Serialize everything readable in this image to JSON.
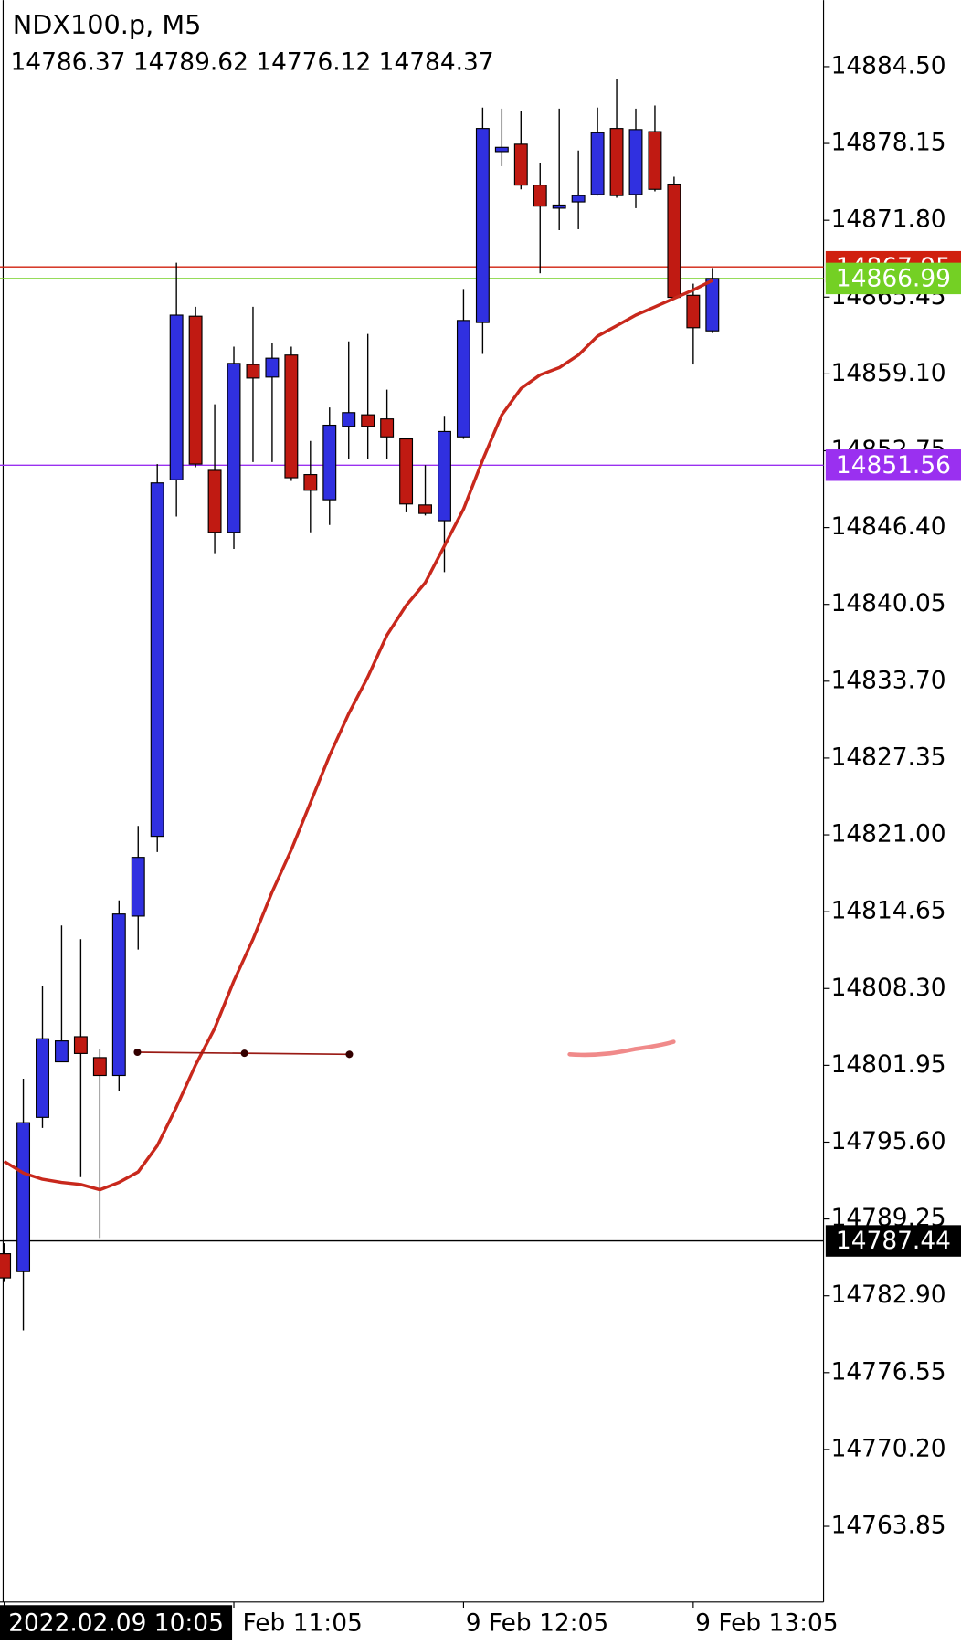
{
  "chart_data": {
    "type": "candlestick",
    "title": "NDX100.p, M5",
    "subtitle": "14786.37 14789.62 14776.12 14784.37",
    "categories": [
      "2022.02.09 10:05",
      null,
      null,
      null,
      null,
      null,
      null,
      null,
      null,
      null,
      null,
      null,
      "Feb 11:05",
      null,
      null,
      null,
      null,
      null,
      null,
      null,
      null,
      null,
      null,
      null,
      "9 Feb 12:05",
      null,
      null,
      null,
      null,
      null,
      null,
      null,
      null,
      null,
      null,
      null,
      "9 Feb 13:05",
      null
    ],
    "open": [
      14786.38,
      14784.9,
      14797.65,
      14802.24,
      14804.32,
      14802.59,
      14801.11,
      14814.29,
      14820.88,
      14850.35,
      14863.87,
      14851.13,
      14846.01,
      14859.88,
      14858.84,
      14860.66,
      14850.78,
      14848.7,
      14854.77,
      14855.72,
      14855.38,
      14853.73,
      14848.27,
      14846.97,
      14853.9,
      14863.35,
      14877.48,
      14878.09,
      14874.71,
      14872.8,
      14873.32,
      14873.93,
      14879.39,
      14873.93,
      14879.13,
      14874.79,
      14865.6,
      14862.66
    ],
    "high": [
      14787.25,
      14800.85,
      14808.48,
      14813.51,
      14812.38,
      14803.28,
      14815.59,
      14821.74,
      14851.65,
      14868.29,
      14864.65,
      14856.59,
      14861.36,
      14864.65,
      14861.62,
      14861.36,
      14853.56,
      14856.33,
      14861.79,
      14862.4,
      14857.8,
      14853.73,
      14851.56,
      14855.64,
      14866.12,
      14881.12,
      14881.03,
      14880.86,
      14876.53,
      14881.03,
      14877.57,
      14881.12,
      14883.46,
      14881.03,
      14881.29,
      14875.4,
      14866.56,
      14867.86
    ],
    "low": [
      14784.04,
      14780.05,
      14796.78,
      14802.24,
      14792.71,
      14787.68,
      14799.81,
      14811.52,
      14819.58,
      14847.31,
      14851.39,
      14844.28,
      14844.63,
      14851.82,
      14851.82,
      14850.26,
      14846.01,
      14846.62,
      14852.08,
      14852.08,
      14852.08,
      14847.66,
      14847.4,
      14842.72,
      14853.73,
      14860.75,
      14876.27,
      14874.36,
      14867.42,
      14870.98,
      14871.06,
      14873.84,
      14873.66,
      14872.8,
      14874.19,
      14865.26,
      14859.88,
      14862.48
    ],
    "close": [
      14784.38,
      14797.21,
      14804.15,
      14803.97,
      14802.93,
      14801.11,
      14814.46,
      14819.14,
      14850.09,
      14863.96,
      14851.65,
      14846.01,
      14859.97,
      14858.76,
      14860.4,
      14850.52,
      14849.48,
      14854.86,
      14855.9,
      14854.77,
      14853.9,
      14848.35,
      14847.57,
      14854.34,
      14863.52,
      14879.39,
      14877.83,
      14874.71,
      14872.97,
      14873.06,
      14873.84,
      14879.04,
      14873.84,
      14879.3,
      14874.36,
      14865.43,
      14862.92,
      14866.99
    ],
    "up_color": "#3030e0",
    "down_color": "#c01a12",
    "ma": {
      "color": "#c8281c",
      "values": [
        14794.01,
        14793.05,
        14792.53,
        14792.27,
        14792.1,
        14791.67,
        14792.27,
        14793.14,
        14795.31,
        14798.51,
        14801.98,
        14805.01,
        14808.92,
        14812.38,
        14816.28,
        14819.75,
        14823.65,
        14827.55,
        14831.02,
        14834.05,
        14837.52,
        14839.95,
        14841.85,
        14844.89,
        14847.92,
        14851.99,
        14855.72,
        14857.89,
        14859.02,
        14859.62,
        14860.66,
        14862.22,
        14863.09,
        14863.96,
        14864.65,
        14865.34,
        14866.04,
        14866.82
      ]
    },
    "ylim": [
      14757.6,
      14890.0
    ],
    "yticks": [
      {
        "value": 14884.5,
        "label": "14884.50"
      },
      14878.15,
      {
        "value": 14871.8,
        "label": "14871.80"
      },
      14865.45,
      {
        "value": 14859.1,
        "label": "14859.10"
      },
      14852.75,
      {
        "value": 14846.4,
        "label": "14846.40"
      },
      14840.05,
      {
        "value": 14833.7,
        "label": "14833.70"
      },
      14827.35,
      {
        "value": 14821,
        "label": "14821.00"
      },
      14814.65,
      {
        "value": 14808.3,
        "label": "14808.30"
      },
      14801.95,
      {
        "value": 14795.6,
        "label": "14795.60"
      },
      14789.25,
      {
        "value": 14782.9,
        "label": "14782.90"
      },
      14776.55,
      {
        "value": 14770.2,
        "label": "14770.20"
      },
      14763.85
    ],
    "price_lines": [
      {
        "value": 14867.95,
        "color": "#d0200e"
      },
      {
        "value": 14866.99,
        "color": "#74d024"
      },
      {
        "value": 14851.56,
        "color": "#9a30f0"
      },
      {
        "value": 14787.44,
        "color": "#000000"
      }
    ]
  }
}
